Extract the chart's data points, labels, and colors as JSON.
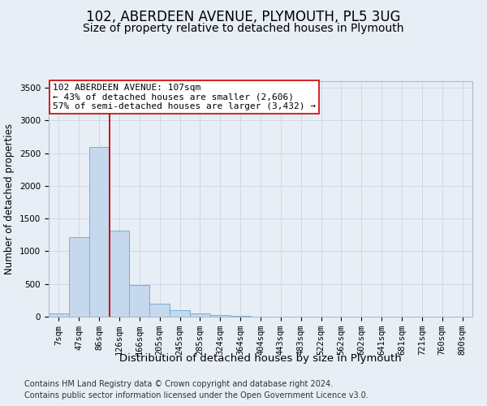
{
  "title1": "102, ABERDEEN AVENUE, PLYMOUTH, PL5 3UG",
  "title2": "Size of property relative to detached houses in Plymouth",
  "xlabel": "Distribution of detached houses by size in Plymouth",
  "ylabel": "Number of detached properties",
  "bar_color": "#c5d8ed",
  "bar_edge_color": "#7aafd4",
  "grid_color": "#cdd8e8",
  "background_color": "#e8eef5",
  "vline_color": "#cc0000",
  "vline_x_index": 2.5,
  "annotation_line1": "102 ABERDEEN AVENUE: 107sqm",
  "annotation_line2": "← 43% of detached houses are smaller (2,606)",
  "annotation_line3": "57% of semi-detached houses are larger (3,432) →",
  "annotation_box_color": "#ffffff",
  "annotation_border_color": "#cc0000",
  "categories": [
    "7sqm",
    "47sqm",
    "86sqm",
    "126sqm",
    "166sqm",
    "205sqm",
    "245sqm",
    "285sqm",
    "324sqm",
    "364sqm",
    "404sqm",
    "443sqm",
    "483sqm",
    "522sqm",
    "562sqm",
    "602sqm",
    "641sqm",
    "681sqm",
    "721sqm",
    "760sqm",
    "800sqm"
  ],
  "values": [
    50,
    1220,
    2590,
    1310,
    490,
    200,
    105,
    55,
    30,
    10,
    5,
    3,
    2,
    1,
    0,
    0,
    0,
    0,
    0,
    0,
    0
  ],
  "ylim": [
    0,
    3600
  ],
  "yticks": [
    0,
    500,
    1000,
    1500,
    2000,
    2500,
    3000,
    3500
  ],
  "footer1": "Contains HM Land Registry data © Crown copyright and database right 2024.",
  "footer2": "Contains public sector information licensed under the Open Government Licence v3.0.",
  "title1_fontsize": 12,
  "title2_fontsize": 10,
  "tick_fontsize": 7.5,
  "ylabel_fontsize": 8.5,
  "xlabel_fontsize": 9.5,
  "footer_fontsize": 7,
  "ann_fontsize": 8
}
